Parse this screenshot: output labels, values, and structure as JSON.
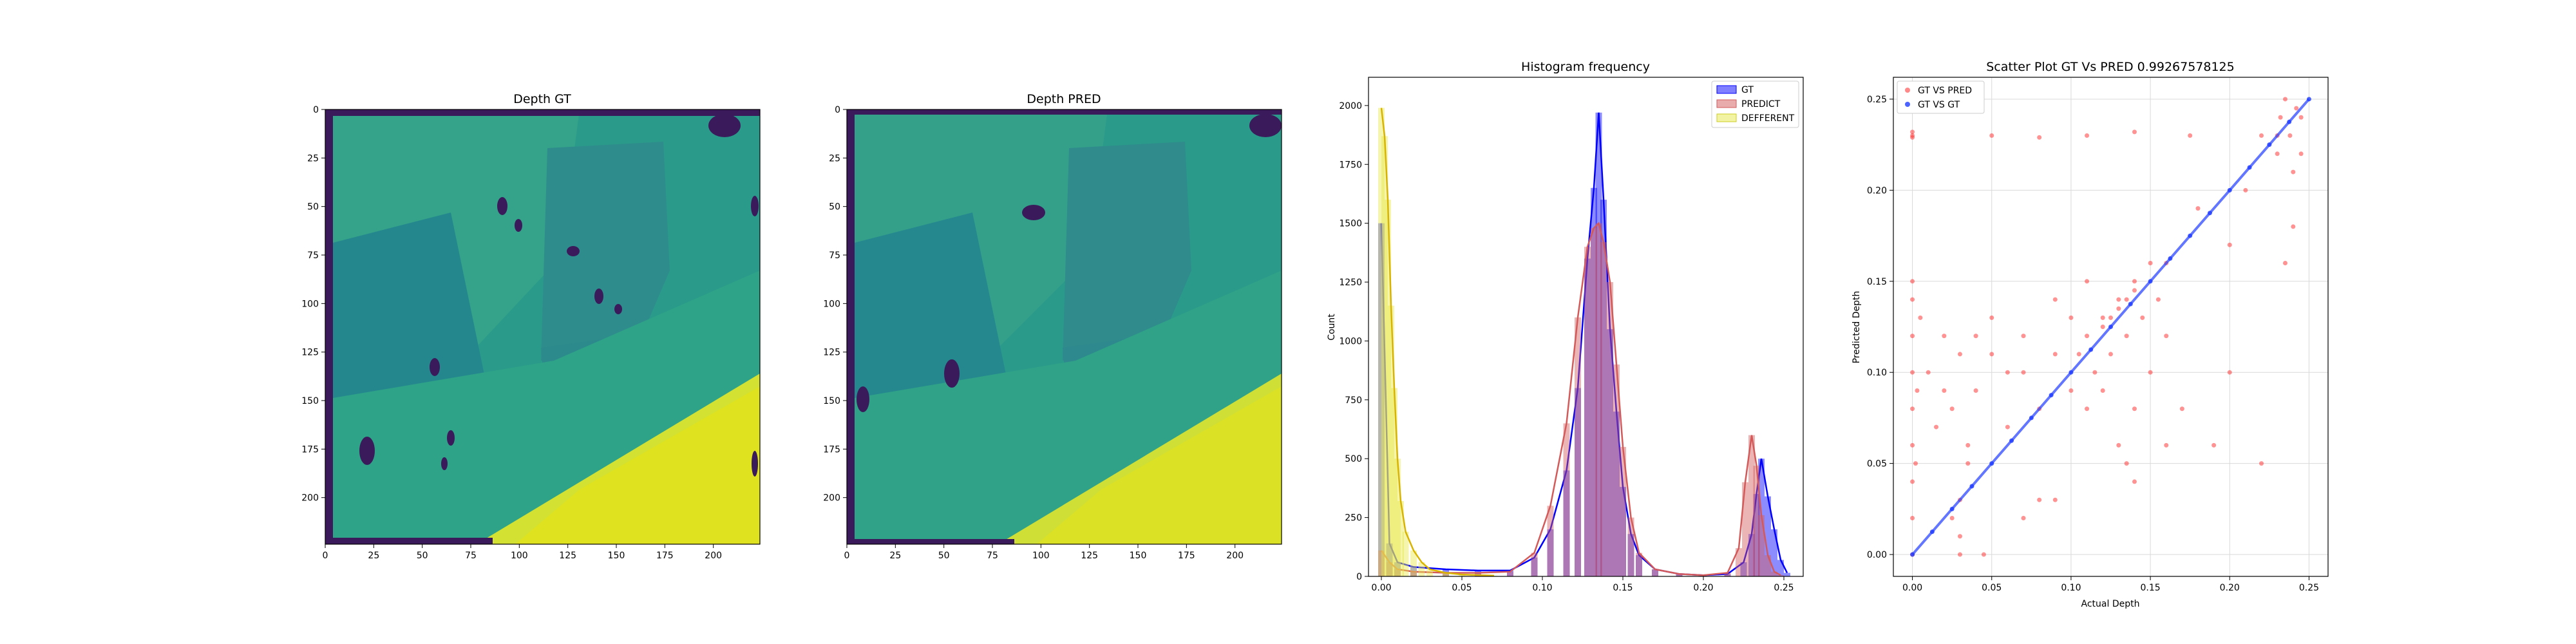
{
  "chart_data": [
    {
      "type": "heatmap",
      "title": "Depth GT",
      "xticks": [
        "0",
        "25",
        "50",
        "75",
        "100",
        "125",
        "150",
        "175",
        "200"
      ],
      "yticks": [
        "0",
        "25",
        "50",
        "75",
        "100",
        "125",
        "150",
        "175",
        "200"
      ],
      "xlim": [
        0,
        224
      ],
      "ylim": [
        224,
        0
      ],
      "colormap": "viridis"
    },
    {
      "type": "heatmap",
      "title": "Depth PRED",
      "xticks": [
        "0",
        "25",
        "50",
        "75",
        "100",
        "125",
        "150",
        "175",
        "200"
      ],
      "yticks": [
        "0",
        "25",
        "50",
        "75",
        "100",
        "125",
        "150",
        "175",
        "200"
      ],
      "xlim": [
        0,
        224
      ],
      "ylim": [
        224,
        0
      ],
      "colormap": "viridis"
    },
    {
      "type": "bar",
      "title": "Histogram frequency",
      "ylabel": "Count",
      "xlim": [
        -0.008,
        0.262
      ],
      "ylim": [
        0,
        2120
      ],
      "xticks": [
        "0.00",
        "0.05",
        "0.10",
        "0.15",
        "0.20",
        "0.25"
      ],
      "yticks": [
        "0",
        "250",
        "500",
        "750",
        "1000",
        "1250",
        "1500",
        "1750",
        "2000"
      ],
      "legend": [
        "GT",
        "PREDICT",
        "DEFFERENT"
      ],
      "legend_position": "top-right",
      "colors": {
        "GT": "#0000ff",
        "PREDICT": "#d45a5a",
        "DEFFERENT": "#e8e84a"
      },
      "series": [
        {
          "name": "GT",
          "x": [
            0.0,
            0.005,
            0.01,
            0.02,
            0.04,
            0.06,
            0.08,
            0.095,
            0.105,
            0.115,
            0.122,
            0.128,
            0.132,
            0.135,
            0.138,
            0.142,
            0.146,
            0.15,
            0.155,
            0.16,
            0.17,
            0.185,
            0.2,
            0.215,
            0.225,
            0.23,
            0.233,
            0.236,
            0.24,
            0.244,
            0.248,
            0.252
          ],
          "values": [
            1500,
            140,
            60,
            40,
            30,
            25,
            25,
            80,
            200,
            450,
            800,
            1350,
            1650,
            1970,
            1600,
            1050,
            700,
            380,
            180,
            90,
            30,
            10,
            5,
            10,
            60,
            180,
            350,
            500,
            340,
            200,
            70,
            15
          ]
        },
        {
          "name": "PREDICT",
          "x": [
            0.0,
            0.005,
            0.01,
            0.02,
            0.04,
            0.06,
            0.08,
            0.095,
            0.105,
            0.115,
            0.122,
            0.128,
            0.132,
            0.135,
            0.138,
            0.142,
            0.146,
            0.15,
            0.155,
            0.16,
            0.17,
            0.185,
            0.2,
            0.215,
            0.222,
            0.226,
            0.23,
            0.233,
            0.236,
            0.24,
            0.244,
            0.248
          ],
          "values": [
            110,
            60,
            30,
            20,
            15,
            15,
            20,
            100,
            300,
            650,
            1100,
            1400,
            1480,
            1500,
            1420,
            1250,
            900,
            550,
            250,
            100,
            30,
            10,
            5,
            15,
            120,
            400,
            600,
            470,
            260,
            90,
            20,
            5
          ]
        },
        {
          "name": "DEFFERENT",
          "x": [
            0.0,
            0.002,
            0.004,
            0.006,
            0.008,
            0.01,
            0.012,
            0.015,
            0.02,
            0.025,
            0.03,
            0.04,
            0.05,
            0.07
          ],
          "values": [
            1990,
            1870,
            1600,
            1150,
            800,
            500,
            320,
            190,
            110,
            60,
            30,
            15,
            8,
            3
          ]
        }
      ]
    },
    {
      "type": "scatter",
      "title": "Scatter Plot GT Vs PRED 0.99267578125",
      "xlabel": "Actual Depth",
      "ylabel": "Predicted Depth",
      "xlim": [
        -0.012,
        0.262
      ],
      "ylim": [
        -0.012,
        0.262
      ],
      "xticks": [
        "0.00",
        "0.05",
        "0.10",
        "0.15",
        "0.20",
        "0.25"
      ],
      "yticks": [
        "0.00",
        "0.05",
        "0.10",
        "0.15",
        "0.20",
        "0.25"
      ],
      "grid": true,
      "legend": [
        "GT VS PRED",
        "GT VS GT"
      ],
      "legend_position": "top-left",
      "colors": {
        "GT VS PRED": "#ff3b3b",
        "GT VS GT": "#1f3cff"
      },
      "series": [
        {
          "name": "GT VS PRED",
          "x": [
            0.0,
            0.0,
            0.0,
            0.0,
            0.0,
            0.0,
            0.0,
            0.0,
            0.0,
            0.0,
            0.0,
            0.0,
            0.002,
            0.003,
            0.005,
            0.01,
            0.02,
            0.025,
            0.03,
            0.03,
            0.03,
            0.035,
            0.04,
            0.05,
            0.06,
            0.07,
            0.08,
            0.09,
            0.1,
            0.1,
            0.105,
            0.11,
            0.11,
            0.115,
            0.12,
            0.12,
            0.125,
            0.13,
            0.13,
            0.135,
            0.14,
            0.14,
            0.145,
            0.15,
            0.15,
            0.155,
            0.16,
            0.16,
            0.12,
            0.125,
            0.13,
            0.135,
            0.14,
            0.135,
            0.14,
            0.03,
            0.05,
            0.07,
            0.09,
            0.11,
            0.08,
            0.06,
            0.04,
            0.02,
            0.17,
            0.18,
            0.19,
            0.2,
            0.21,
            0.22,
            0.23,
            0.232,
            0.235,
            0.238,
            0.24,
            0.242,
            0.245,
            0.24,
            0.235,
            0.23,
            0.245,
            0.05,
            0.08,
            0.11,
            0.14,
            0.175,
            0.2,
            0.22,
            0.16,
            0.09,
            0.07,
            0.035,
            0.045,
            0.015,
            0.025
          ],
          "values": [
            0.0,
            0.02,
            0.04,
            0.06,
            0.08,
            0.1,
            0.12,
            0.14,
            0.15,
            0.23,
            0.229,
            0.232,
            0.05,
            0.09,
            0.13,
            0.1,
            0.12,
            0.02,
            0.0,
            0.01,
            0.03,
            0.06,
            0.09,
            0.11,
            0.1,
            0.12,
            0.08,
            0.11,
            0.09,
            0.13,
            0.11,
            0.08,
            0.12,
            0.1,
            0.09,
            0.13,
            0.11,
            0.06,
            0.14,
            0.12,
            0.08,
            0.15,
            0.13,
            0.1,
            0.16,
            0.14,
            0.12,
            0.16,
            0.125,
            0.13,
            0.135,
            0.14,
            0.145,
            0.05,
            0.04,
            0.11,
            0.13,
            0.1,
            0.14,
            0.15,
            0.03,
            0.07,
            0.12,
            0.09,
            0.08,
            0.19,
            0.06,
            0.17,
            0.2,
            0.23,
            0.22,
            0.24,
            0.25,
            0.23,
            0.21,
            0.245,
            0.24,
            0.18,
            0.16,
            0.23,
            0.22,
            0.23,
            0.229,
            0.23,
            0.232,
            0.23,
            0.1,
            0.05,
            0.06,
            0.03,
            0.02,
            0.05,
            0.0,
            0.07,
            0.08
          ]
        },
        {
          "name": "GT VS GT",
          "x": [
            0.0,
            0.0125,
            0.025,
            0.0375,
            0.05,
            0.0625,
            0.075,
            0.0875,
            0.1,
            0.1125,
            0.125,
            0.1375,
            0.15,
            0.1625,
            0.175,
            0.1875,
            0.2,
            0.2125,
            0.225,
            0.2375,
            0.25
          ],
          "values": [
            0.0,
            0.0125,
            0.025,
            0.0375,
            0.05,
            0.0625,
            0.075,
            0.0875,
            0.1,
            0.1125,
            0.125,
            0.1375,
            0.15,
            0.1625,
            0.175,
            0.1875,
            0.2,
            0.2125,
            0.225,
            0.2375,
            0.25
          ]
        }
      ]
    }
  ]
}
